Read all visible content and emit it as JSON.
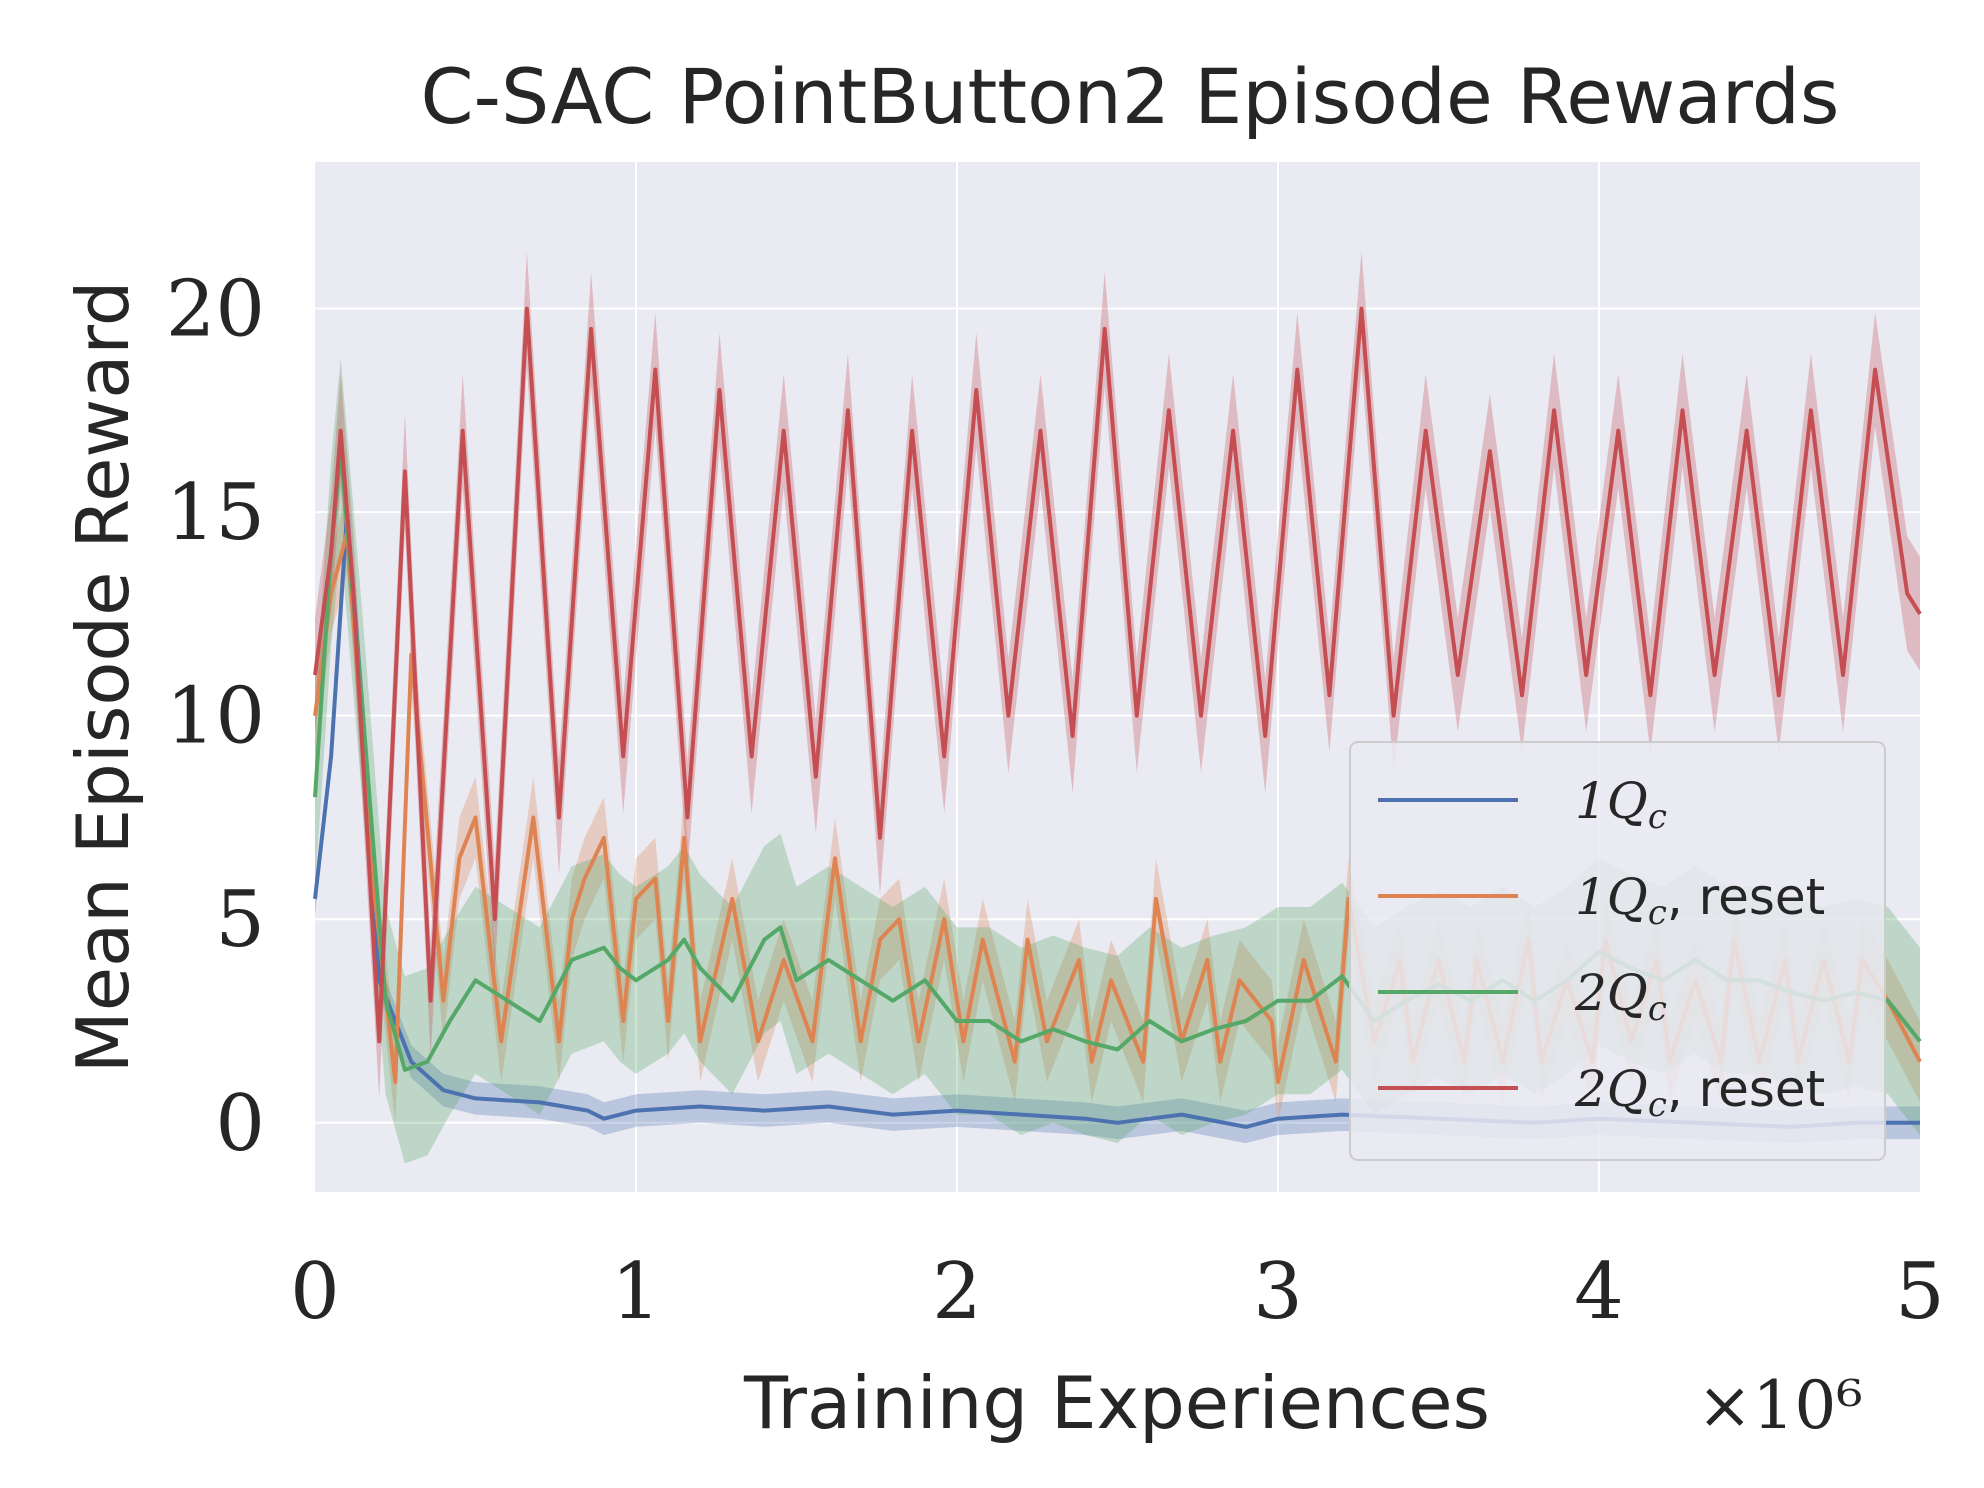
{
  "chart_data": {
    "type": "line",
    "title": "C-SAC PointButton2 Episode Rewards",
    "xlabel": "Training Experiences",
    "ylabel": "Mean Episode Reward",
    "x_multiplier": "×10⁶",
    "xlim": [
      0,
      5
    ],
    "ylim": [
      -1.7,
      23.6
    ],
    "xticks": [
      0,
      1,
      2,
      3,
      4,
      5
    ],
    "xtick_labels": [
      "0",
      "1",
      "2",
      "3",
      "4",
      "5"
    ],
    "yticks": [
      0,
      5,
      10,
      15,
      20
    ],
    "ytick_labels": [
      "0",
      "5",
      "10",
      "15",
      "20"
    ],
    "grid": true,
    "legend_position": "lower-right",
    "colors": {
      "background": "#eaeaf2",
      "grid": "#ffffff",
      "text": "#262626"
    },
    "series": [
      {
        "name": "1Q_c",
        "label_main": "1Q",
        "label_sub": "c",
        "label_suffix": "",
        "color": "#4c72b0",
        "x": [
          0,
          0.05,
          0.1,
          0.15,
          0.2,
          0.3,
          0.4,
          0.5,
          0.7,
          0.85,
          0.9,
          1.0,
          1.2,
          1.4,
          1.6,
          1.8,
          2.0,
          2.2,
          2.4,
          2.5,
          2.7,
          2.9,
          3.0,
          3.2,
          3.5,
          3.8,
          4.0,
          4.3,
          4.6,
          4.8,
          5.0
        ],
        "values": [
          5.5,
          9.0,
          15.0,
          10.0,
          3.5,
          1.5,
          0.8,
          0.6,
          0.5,
          0.3,
          0.1,
          0.3,
          0.4,
          0.3,
          0.4,
          0.2,
          0.3,
          0.2,
          0.1,
          0.0,
          0.2,
          -0.1,
          0.1,
          0.2,
          0.1,
          0.0,
          0.1,
          0.0,
          -0.1,
          0.0,
          0.0
        ],
        "band": 0.4
      },
      {
        "name": "1Q_c, reset",
        "label_main": "1Q",
        "label_sub": "c",
        "label_suffix": ", reset",
        "color": "#dd8452",
        "x": [
          0,
          0.05,
          0.1,
          0.18,
          0.25,
          0.3,
          0.4,
          0.45,
          0.5,
          0.55,
          0.58,
          0.68,
          0.76,
          0.8,
          0.84,
          0.9,
          0.96,
          1.0,
          1.06,
          1.1,
          1.15,
          1.2,
          1.3,
          1.38,
          1.46,
          1.55,
          1.62,
          1.7,
          1.76,
          1.82,
          1.88,
          1.96,
          2.02,
          2.08,
          2.18,
          2.22,
          2.28,
          2.38,
          2.42,
          2.48,
          2.58,
          2.62,
          2.7,
          2.78,
          2.82,
          2.88,
          2.98,
          3.0,
          3.08,
          3.18,
          3.22,
          3.3,
          3.38,
          3.42,
          3.5,
          3.58,
          3.62,
          3.7,
          3.78,
          3.82,
          3.9,
          3.98,
          4.02,
          4.1,
          4.18,
          4.22,
          4.3,
          4.38,
          4.42,
          4.5,
          4.58,
          4.62,
          4.7,
          4.78,
          4.82,
          4.9,
          5.0
        ],
        "values": [
          10.0,
          13.0,
          14.5,
          6.0,
          1.0,
          11.5,
          3.0,
          6.5,
          7.5,
          4.0,
          2.0,
          7.5,
          2.0,
          5.0,
          6.0,
          7.0,
          2.5,
          5.5,
          6.0,
          2.5,
          7.0,
          2.0,
          5.5,
          2.0,
          4.0,
          2.0,
          6.5,
          2.0,
          4.5,
          5.0,
          2.0,
          5.0,
          2.0,
          4.5,
          1.5,
          4.5,
          2.0,
          4.0,
          1.5,
          3.5,
          1.5,
          5.5,
          2.0,
          4.0,
          1.5,
          3.5,
          2.5,
          1.0,
          4.0,
          1.5,
          5.5,
          2.0,
          4.0,
          1.5,
          4.0,
          1.5,
          4.0,
          1.5,
          4.5,
          1.5,
          3.5,
          1.5,
          4.5,
          2.0,
          4.0,
          1.5,
          3.5,
          1.5,
          4.5,
          1.5,
          4.0,
          1.5,
          4.0,
          1.5,
          4.0,
          3.0,
          1.5
        ],
        "band": 1.0
      },
      {
        "name": "2Q_c",
        "label_main": "2Q",
        "label_sub": "c",
        "label_suffix": "",
        "color": "#55a868",
        "x": [
          0,
          0.05,
          0.08,
          0.15,
          0.22,
          0.28,
          0.35,
          0.42,
          0.5,
          0.6,
          0.7,
          0.8,
          0.9,
          0.95,
          1.0,
          1.1,
          1.15,
          1.2,
          1.3,
          1.4,
          1.45,
          1.5,
          1.6,
          1.7,
          1.8,
          1.9,
          2.0,
          2.1,
          2.2,
          2.3,
          2.4,
          2.5,
          2.6,
          2.7,
          2.8,
          2.9,
          3.0,
          3.1,
          3.2,
          3.3,
          3.4,
          3.5,
          3.6,
          3.7,
          3.8,
          3.9,
          4.0,
          4.1,
          4.2,
          4.3,
          4.4,
          4.5,
          4.6,
          4.7,
          4.8,
          4.9,
          5.0
        ],
        "values": [
          8.0,
          14.0,
          16.5,
          10.0,
          3.0,
          1.3,
          1.5,
          2.5,
          3.5,
          3.0,
          2.5,
          4.0,
          4.3,
          3.8,
          3.5,
          4.0,
          4.5,
          3.8,
          3.0,
          4.5,
          4.8,
          3.5,
          4.0,
          3.5,
          3.0,
          3.5,
          2.5,
          2.5,
          2.0,
          2.3,
          2.0,
          1.8,
          2.5,
          2.0,
          2.3,
          2.5,
          3.0,
          3.0,
          3.6,
          2.5,
          3.0,
          3.4,
          3.0,
          3.5,
          3.0,
          3.5,
          4.2,
          3.8,
          3.5,
          4.0,
          3.5,
          3.5,
          3.2,
          3.0,
          3.2,
          3.0,
          2.0
        ],
        "band": 2.3
      },
      {
        "name": "2Q_c, reset",
        "label_main": "2Q",
        "label_sub": "c",
        "label_suffix": ", reset",
        "color": "#c44e52",
        "x": [
          0,
          0.05,
          0.08,
          0.12,
          0.2,
          0.28,
          0.36,
          0.46,
          0.56,
          0.66,
          0.76,
          0.86,
          0.96,
          1.06,
          1.16,
          1.26,
          1.36,
          1.46,
          1.56,
          1.66,
          1.76,
          1.86,
          1.96,
          2.06,
          2.16,
          2.26,
          2.36,
          2.46,
          2.56,
          2.66,
          2.76,
          2.86,
          2.96,
          3.06,
          3.16,
          3.26,
          3.36,
          3.46,
          3.56,
          3.66,
          3.76,
          3.86,
          3.96,
          4.06,
          4.16,
          4.26,
          4.36,
          4.46,
          4.56,
          4.66,
          4.76,
          4.86,
          4.96,
          5.0
        ],
        "values": [
          11.0,
          14.0,
          17.0,
          13.0,
          2.0,
          16.0,
          3.0,
          17.0,
          5.0,
          20.0,
          7.5,
          19.5,
          9.0,
          18.5,
          7.5,
          18.0,
          9.0,
          17.0,
          8.5,
          17.5,
          7.0,
          17.0,
          9.0,
          18.0,
          10.0,
          17.0,
          9.5,
          19.5,
          10.0,
          17.5,
          10.0,
          17.0,
          9.5,
          18.5,
          10.5,
          20.0,
          10.0,
          17.0,
          11.0,
          16.5,
          10.5,
          17.5,
          11.0,
          17.0,
          10.5,
          17.5,
          11.0,
          17.0,
          10.5,
          17.5,
          11.0,
          18.5,
          13.0,
          12.5
        ],
        "band": 1.4
      }
    ]
  }
}
